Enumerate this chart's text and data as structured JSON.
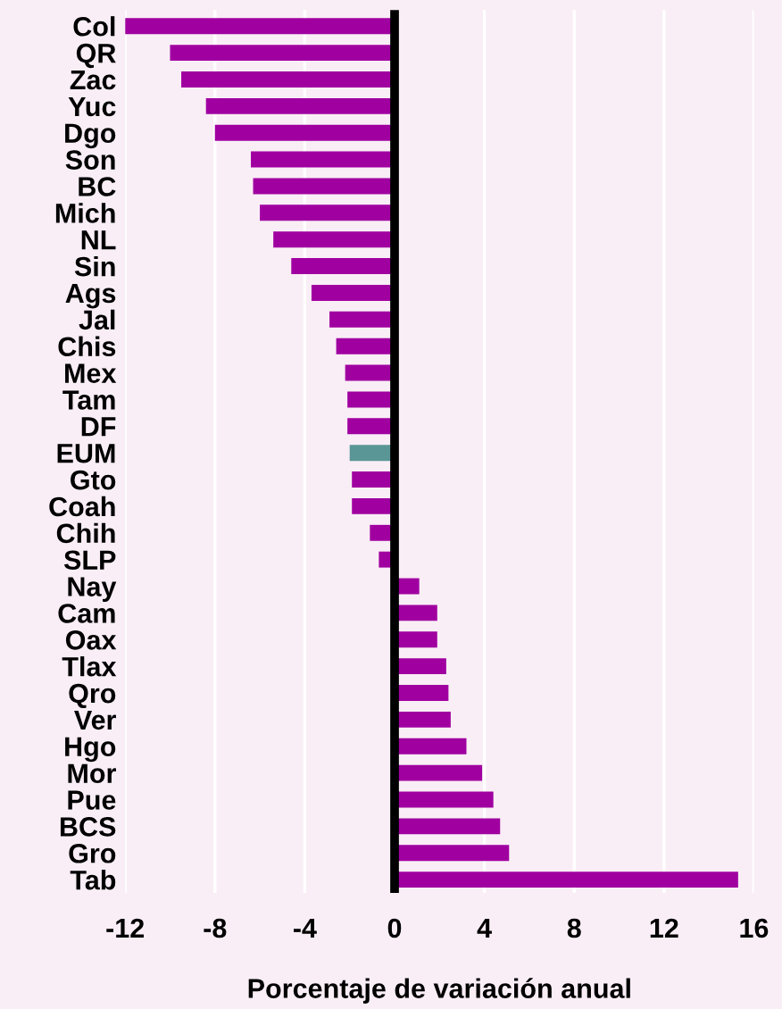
{
  "chart_data": {
    "type": "bar",
    "orientation": "horizontal",
    "xlabel": "Porcentaje de variación anual",
    "categories": [
      "Col",
      "QR",
      "Zac",
      "Yuc",
      "Dgo",
      "Son",
      "BC",
      "Mich",
      "NL",
      "Sin",
      "Ags",
      "Jal",
      "Chis",
      "Mex",
      "Tam",
      "DF",
      "EUM",
      "Gto",
      "Coah",
      "Chih",
      "SLP",
      "Nay",
      "Cam",
      "Oax",
      "Tlax",
      "Qro",
      "Ver",
      "Hgo",
      "Mor",
      "Pue",
      "BCS",
      "Gro",
      "Tab"
    ],
    "values": [
      -12.0,
      -10.0,
      -9.5,
      -8.4,
      -8.0,
      -6.4,
      -6.3,
      -6.0,
      -5.4,
      -4.6,
      -3.7,
      -2.9,
      -2.6,
      -2.2,
      -2.1,
      -2.1,
      -2.0,
      -1.9,
      -1.9,
      -1.1,
      -0.7,
      1.1,
      1.9,
      1.9,
      2.3,
      2.4,
      2.5,
      3.2,
      3.9,
      4.4,
      4.7,
      5.1,
      15.3
    ],
    "colors": [
      "#a000a0",
      "#a000a0",
      "#a000a0",
      "#a000a0",
      "#a000a0",
      "#a000a0",
      "#a000a0",
      "#a000a0",
      "#a000a0",
      "#a000a0",
      "#a000a0",
      "#a000a0",
      "#a000a0",
      "#a000a0",
      "#a000a0",
      "#a000a0",
      "#5a9696",
      "#a000a0",
      "#a000a0",
      "#a000a0",
      "#a000a0",
      "#a000a0",
      "#a000a0",
      "#a000a0",
      "#a000a0",
      "#a000a0",
      "#a000a0",
      "#a000a0",
      "#a000a0",
      "#a000a0",
      "#a000a0",
      "#a000a0",
      "#a000a0"
    ],
    "xlim": [
      -12,
      16
    ],
    "xticks": [
      -12,
      -8,
      -4,
      0,
      4,
      8,
      12,
      16
    ],
    "grid": "x",
    "ref_lines": [
      {
        "axis": "x",
        "value": 0,
        "color": "#000000"
      }
    ]
  }
}
